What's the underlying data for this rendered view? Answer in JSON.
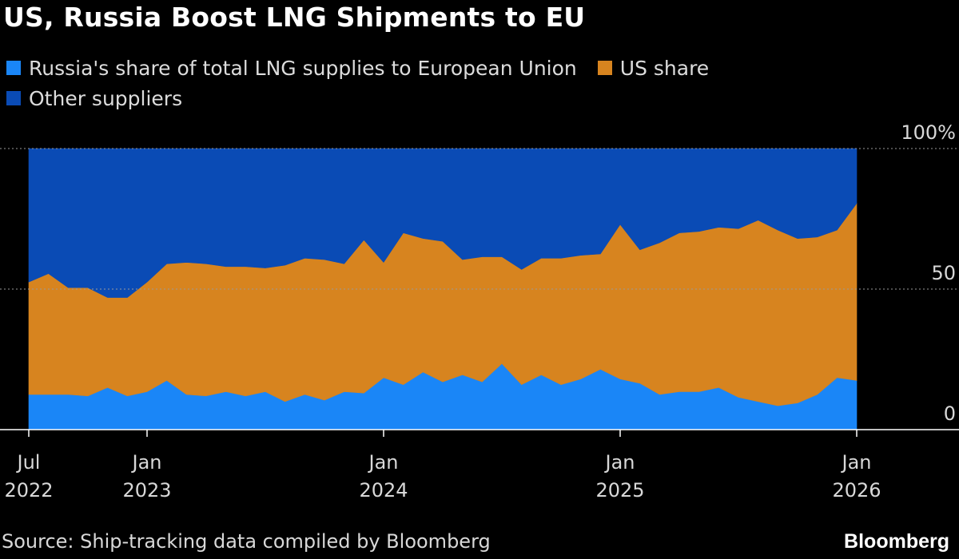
{
  "chart_data": {
    "type": "area",
    "stacked": true,
    "title": "US, Russia Boost LNG Shipments to EU",
    "xlabel": "",
    "ylabel": "",
    "ylim": [
      0,
      100
    ],
    "y_ticks": [
      {
        "value": 0,
        "label": "0"
      },
      {
        "value": 50,
        "label": "50"
      },
      {
        "value": 100,
        "label": "100%"
      }
    ],
    "x_ticks": [
      {
        "month_index": 0,
        "line1": "Jul",
        "line2": "2022"
      },
      {
        "month_index": 6,
        "line1": "Jan",
        "line2": "2023"
      },
      {
        "month_index": 18,
        "line1": "Jan",
        "line2": "2024"
      },
      {
        "month_index": 30,
        "line1": "Jan",
        "line2": "2025"
      },
      {
        "month_index": 42,
        "line1": "Jan",
        "line2": "2026"
      }
    ],
    "x_start": "2022-07",
    "x_end": "2026-01",
    "grid": true,
    "legend_position": "top",
    "series": [
      {
        "name": "Russia's share of total LNG supplies to European Union",
        "color": "#1a86f7",
        "values": [
          12.5,
          12.5,
          12.5,
          12,
          15,
          12,
          13.5,
          17.5,
          12.5,
          12,
          13.5,
          12,
          13.5,
          10,
          12.5,
          10.5,
          13.5,
          13,
          18.5,
          16,
          20.5,
          17,
          19.5,
          17,
          23.5,
          16,
          19.5,
          16,
          18,
          21.5,
          18,
          16.5,
          12.5,
          13.5,
          13.5,
          15,
          11.5,
          10,
          8.5,
          9.5,
          12.5,
          18.5,
          17.5
        ]
      },
      {
        "name": "US share",
        "color": "#d7841f",
        "values": [
          40,
          43,
          38,
          38.5,
          32,
          35,
          39,
          41.5,
          47,
          47,
          44.5,
          46,
          44,
          48.5,
          48.5,
          50,
          45.5,
          54.5,
          41,
          54,
          47.5,
          50,
          41,
          44.5,
          38,
          41,
          41.5,
          45,
          44,
          41,
          55,
          47.5,
          54,
          56.5,
          57,
          57,
          60,
          64.5,
          62.5,
          58.5,
          56,
          52.5,
          63
        ]
      },
      {
        "name": "Other suppliers",
        "color": "#0a4bb5",
        "values": [
          47.5,
          44.5,
          49.5,
          49.5,
          53,
          53,
          47.5,
          41,
          40.5,
          41,
          42,
          42,
          42.5,
          41.5,
          39,
          39.5,
          41,
          32.5,
          40.5,
          30,
          32,
          33,
          39.5,
          38.5,
          38.5,
          43,
          39,
          39,
          38,
          37.5,
          27,
          36,
          33.5,
          30,
          29.5,
          28,
          28.5,
          25.5,
          29,
          32,
          31.5,
          29,
          19.5
        ]
      }
    ]
  },
  "legend": {
    "russia_label": "Russia's share of total LNG supplies to European Union",
    "us_label": "US share",
    "other_label": "Other suppliers"
  },
  "source": "Source: Ship-tracking data compiled by Bloomberg",
  "brand": "Bloomberg",
  "colors": {
    "background": "#000000",
    "russia": "#1a86f7",
    "us": "#d7841f",
    "other": "#0a4bb5"
  }
}
